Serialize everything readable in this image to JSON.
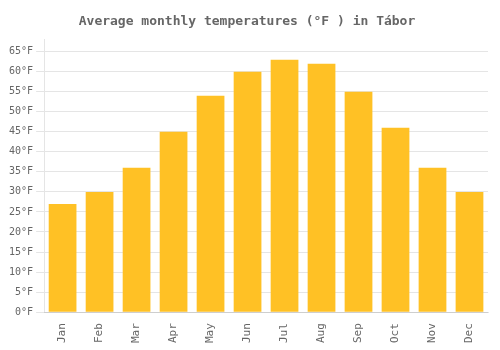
{
  "chart_data": {
    "type": "bar",
    "title": "Average monthly temperatures (°F ) in Tábor",
    "categories": [
      "Jan",
      "Feb",
      "Mar",
      "Apr",
      "May",
      "Jun",
      "Jul",
      "Aug",
      "Sep",
      "Oct",
      "Nov",
      "Dec"
    ],
    "values": [
      27,
      30,
      36,
      45,
      54,
      60,
      63,
      62,
      55,
      46,
      36,
      30
    ],
    "color": "#FFC125",
    "ylim": [
      0,
      68
    ],
    "yticks": [
      {
        "value": 0,
        "label": "0°F"
      },
      {
        "value": 5,
        "label": "5°F"
      },
      {
        "value": 10,
        "label": "10°F"
      },
      {
        "value": 15,
        "label": "15°F"
      },
      {
        "value": 20,
        "label": "20°F"
      },
      {
        "value": 25,
        "label": "25°F"
      },
      {
        "value": 30,
        "label": "30°F"
      },
      {
        "value": 35,
        "label": "35°F"
      },
      {
        "value": 40,
        "label": "40°F"
      },
      {
        "value": 45,
        "label": "45°F"
      },
      {
        "value": 50,
        "label": "50°F"
      },
      {
        "value": 55,
        "label": "55°F"
      },
      {
        "value": 60,
        "label": "60°F"
      },
      {
        "value": 65,
        "label": "65°F"
      }
    ],
    "grid": true
  }
}
